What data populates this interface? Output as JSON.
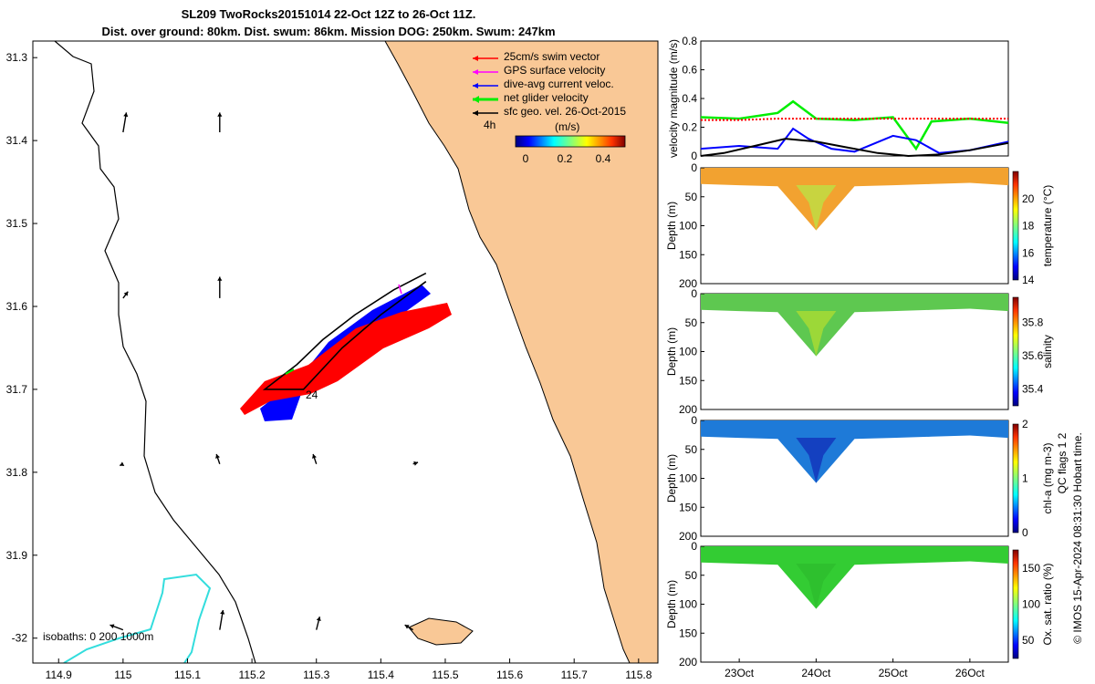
{
  "title_line1": "SL209 TwoRocks20151014 22-Oct 12Z to 26-Oct 11Z.",
  "title_line2": "Dist. over ground: 80km. Dist. swum: 86km. Mission DOG: 250km. Swum: 247km",
  "colors": {
    "land": "#f9c896",
    "swim": "#ff0000",
    "gps": "#ff00ff",
    "dive_avg": "#0000ff",
    "net": "#00ee00",
    "sfc": "#000000",
    "isobath_200": "#33dddd"
  },
  "chart_data": [
    {
      "type": "map",
      "x_ticks": [
        "114.9",
        "115",
        "115.1",
        "115.2",
        "115.3",
        "115.4",
        "115.5",
        "115.6",
        "115.7",
        "115.8"
      ],
      "y_ticks": [
        "31.3",
        "31.4",
        "31.5",
        "31.6",
        "31.7",
        "31.8",
        "31.9",
        "-32"
      ],
      "xlim": [
        114.86,
        115.83
      ],
      "ylim": [
        -31.28,
        -32.03
      ],
      "legend": {
        "position": "top-right",
        "items": [
          "25cm/s swim vector",
          "GPS surface velocity",
          "dive-avg current veloc.",
          "net glider velocity",
          "sfc geo. vel. 26-Oct-2015"
        ]
      },
      "colorbar": {
        "title": "(m/s)",
        "ticks": [
          "0",
          "0.2",
          "0.4"
        ],
        "range": [
          0,
          0.5
        ]
      },
      "track_labels": [
        "4h",
        "24"
      ],
      "isobath_label": "isobaths: 0   200  1000m",
      "track": [
        [
          115.47,
          -31.56
        ],
        [
          115.42,
          -31.58
        ],
        [
          115.36,
          -31.61
        ],
        [
          115.31,
          -31.64
        ],
        [
          115.27,
          -31.67
        ],
        [
          115.22,
          -31.7
        ],
        [
          115.28,
          -31.7
        ],
        [
          115.34,
          -31.65
        ],
        [
          115.4,
          -31.61
        ],
        [
          115.47,
          -31.57
        ]
      ],
      "vectors": [
        {
          "lon": 115.0,
          "lat": -31.39,
          "u": 0.02,
          "v": 0.12
        },
        {
          "lon": 115.15,
          "lat": -31.39,
          "u": 0.0,
          "v": 0.12
        },
        {
          "lon": 115.0,
          "lat": -31.59,
          "u": 0.03,
          "v": 0.04
        },
        {
          "lon": 115.15,
          "lat": -31.59,
          "u": 0.0,
          "v": 0.13
        },
        {
          "lon": 115.0,
          "lat": -31.79,
          "u": -0.02,
          "v": -0.01
        },
        {
          "lon": 115.15,
          "lat": -31.79,
          "u": -0.02,
          "v": 0.06
        },
        {
          "lon": 115.3,
          "lat": -31.79,
          "u": -0.02,
          "v": 0.06
        },
        {
          "lon": 115.45,
          "lat": -31.79,
          "u": 0.03,
          "v": 0.01
        },
        {
          "lon": 115.0,
          "lat": -31.99,
          "u": -0.08,
          "v": 0.03
        },
        {
          "lon": 115.15,
          "lat": -31.99,
          "u": 0.02,
          "v": 0.12
        },
        {
          "lon": 115.3,
          "lat": -31.99,
          "u": 0.02,
          "v": 0.08
        },
        {
          "lon": 115.45,
          "lat": -31.99,
          "u": -0.05,
          "v": 0.03
        }
      ]
    },
    {
      "type": "line",
      "ylabel": "velocity magnitude (m/s)",
      "yticks": [
        "0",
        "0.2",
        "0.4",
        "0.6",
        "0.8"
      ],
      "ylim": [
        0,
        0.8
      ],
      "xlim": [
        22.5,
        26.5
      ],
      "series": [
        {
          "color": "#00ee00",
          "x": [
            22.5,
            23.0,
            23.5,
            23.7,
            24.0,
            24.5,
            25.0,
            25.3,
            25.5,
            26.0,
            26.5
          ],
          "y": [
            0.27,
            0.26,
            0.3,
            0.38,
            0.26,
            0.25,
            0.27,
            0.05,
            0.24,
            0.26,
            0.23
          ]
        },
        {
          "color": "#ff0000",
          "x": [
            22.5,
            23.0,
            23.5,
            24.0,
            24.5,
            25.0,
            25.5,
            26.0,
            26.5
          ],
          "y": [
            0.25,
            0.25,
            0.26,
            0.26,
            0.26,
            0.26,
            0.26,
            0.26,
            0.26
          ]
        },
        {
          "color": "#0000ff",
          "x": [
            22.5,
            23.0,
            23.5,
            23.7,
            23.9,
            24.2,
            24.5,
            25.0,
            25.3,
            25.6,
            26.0,
            26.5
          ],
          "y": [
            0.05,
            0.07,
            0.05,
            0.19,
            0.12,
            0.05,
            0.03,
            0.14,
            0.11,
            0.02,
            0.04,
            0.1
          ]
        },
        {
          "color": "#000000",
          "x": [
            22.5,
            22.8,
            23.2,
            23.6,
            24.0,
            24.4,
            24.8,
            25.2,
            25.6,
            26.0,
            26.5
          ],
          "y": [
            0.0,
            0.02,
            0.07,
            0.12,
            0.1,
            0.06,
            0.02,
            0.0,
            0.01,
            0.04,
            0.09
          ]
        }
      ]
    },
    {
      "type": "heatmap",
      "variable": "temperature",
      "ylabel": "Depth (m)",
      "cbar_label": "temperature (°C)",
      "yticks": [
        "0",
        "50",
        "100",
        "150",
        "200"
      ],
      "ylim": [
        0,
        200
      ],
      "cbar_ticks": [
        "14",
        "16",
        "18",
        "20"
      ],
      "crange": [
        14,
        22
      ],
      "bg": "#f2a230",
      "plume": "#c8d440",
      "max_depth": [
        28,
        30,
        32,
        108,
        32,
        30,
        28,
        26,
        30
      ]
    },
    {
      "type": "heatmap",
      "variable": "salinity",
      "ylabel": "Depth (m)",
      "cbar_label": "salinity",
      "yticks": [
        "0",
        "50",
        "100",
        "150",
        "200"
      ],
      "ylim": [
        0,
        200
      ],
      "cbar_ticks": [
        "35.4",
        "35.6",
        "35.8"
      ],
      "crange": [
        35.3,
        35.95
      ],
      "bg": "#5ec850",
      "plume": "#9cd838",
      "max_depth": [
        28,
        30,
        32,
        108,
        32,
        30,
        28,
        26,
        30
      ]
    },
    {
      "type": "heatmap",
      "variable": "chl-a",
      "ylabel": "Depth (m)",
      "cbar_label": "chl-a (mg m-3)",
      "yticks": [
        "0",
        "50",
        "100",
        "150",
        "200"
      ],
      "ylim": [
        0,
        200
      ],
      "cbar_ticks": [
        "0",
        "1",
        "2"
      ],
      "crange": [
        0,
        2
      ],
      "bg": "#1e7ad8",
      "plume": "#1440c0",
      "max_depth": [
        28,
        30,
        32,
        108,
        32,
        30,
        28,
        26,
        30
      ]
    },
    {
      "type": "heatmap",
      "variable": "oxygen",
      "ylabel": "Depth (m)",
      "cbar_label": "Ox. sat. ratio (%)",
      "yticks": [
        "0",
        "50",
        "100",
        "150",
        "200"
      ],
      "ylim": [
        0,
        200
      ],
      "cbar_ticks": [
        "50",
        "100",
        "150"
      ],
      "crange": [
        25,
        175
      ],
      "bg": "#33cc33",
      "plume": "#2ec02e",
      "max_depth": [
        28,
        30,
        32,
        108,
        32,
        30,
        28,
        26,
        30
      ],
      "xticks": [
        "23Oct",
        "24Oct",
        "25Oct",
        "26Oct"
      ]
    }
  ],
  "footer_right": "QC flags 1  2",
  "footer_left": "© IMOS 15-Apr-2024 08:31:30 Hobart time."
}
